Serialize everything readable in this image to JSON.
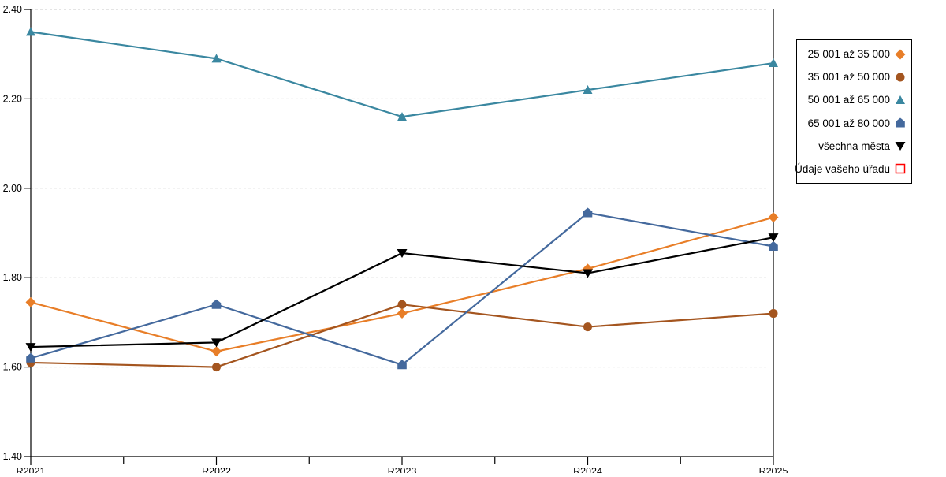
{
  "chart_data": {
    "type": "line",
    "title": "",
    "xlabel": "",
    "ylabel": "",
    "x_categories": [
      "R2021",
      "R2022",
      "R2023",
      "R2024",
      "R2025"
    ],
    "y_axis": {
      "min": 1.4,
      "max": 2.4,
      "tick_step": 0.2,
      "tick_labels": [
        "1.40",
        "1.60",
        "1.80",
        "2.00",
        "2.20",
        "2.40"
      ]
    },
    "grid": "horizontal-dashed",
    "legend_position": "right-outside",
    "series": [
      {
        "name": "25 001 až 35 000",
        "marker": "diamond",
        "color": "#E87E28",
        "values": [
          1.745,
          1.635,
          1.72,
          1.82,
          1.935
        ]
      },
      {
        "name": "35 001 až 50 000",
        "marker": "circle",
        "color": "#A4551F",
        "values": [
          1.61,
          1.6,
          1.74,
          1.69,
          1.72
        ]
      },
      {
        "name": "50 001 až 65 000",
        "marker": "triangle-up",
        "color": "#3A87A0",
        "values": [
          2.35,
          2.29,
          2.16,
          2.22,
          2.28
        ]
      },
      {
        "name": "65 001 až 80 000",
        "marker": "pentagon",
        "color": "#44699D",
        "values": [
          1.62,
          1.74,
          1.605,
          1.945,
          1.87
        ]
      },
      {
        "name": "všechna města",
        "marker": "triangle-down",
        "color": "#000000",
        "values": [
          1.645,
          1.655,
          1.855,
          1.81,
          1.89
        ]
      },
      {
        "name": "Údaje vašeho úřadu",
        "marker": "square-outline",
        "color": "#FF0000",
        "values": []
      }
    ],
    "colors": {
      "grid": "#C9C9C9",
      "axis": "#000000",
      "background": "#FFFFFF"
    }
  }
}
